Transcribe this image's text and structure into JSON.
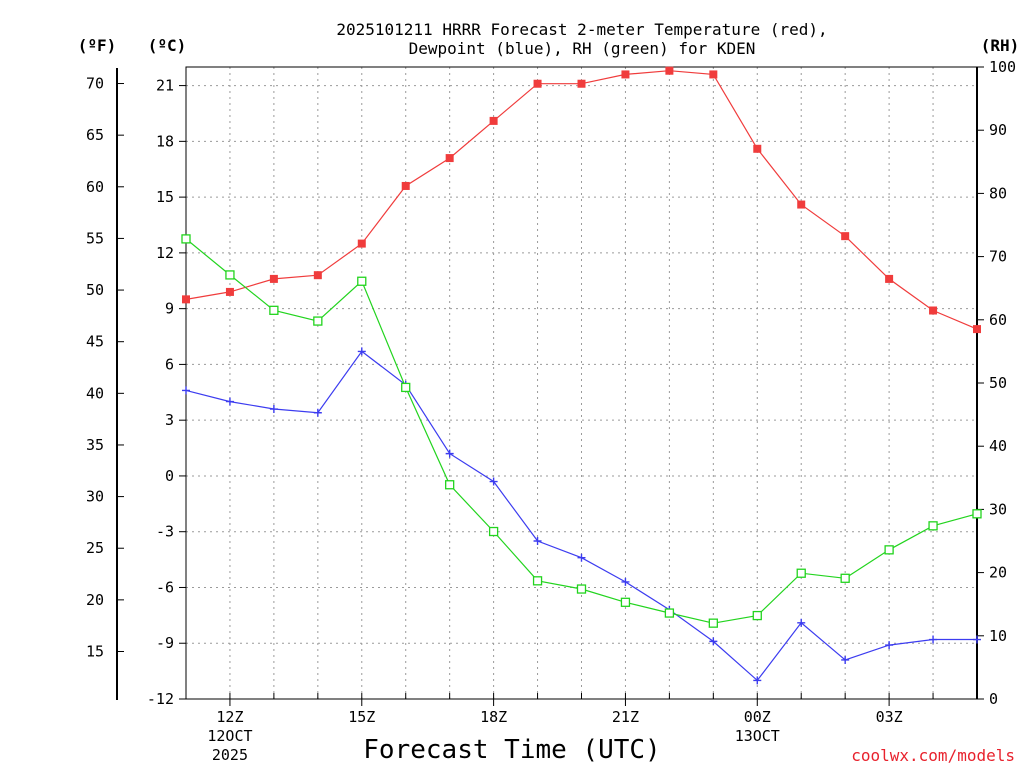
{
  "chart_data": {
    "type": "line",
    "title_line1": "2025101211 HRRR Forecast 2-meter Temperature (red),",
    "title_line2": "Dewpoint (blue), RH (green) for KDEN",
    "xlabel": "Forecast Time (UTC)",
    "credit": "coolwx.com/models",
    "units": {
      "fahrenheit": "(ºF)",
      "celsius": "(ºC)",
      "rh": "(RH)"
    },
    "x_hours": [
      11,
      12,
      13,
      14,
      15,
      16,
      17,
      18,
      19,
      20,
      21,
      22,
      23,
      24,
      25,
      26,
      27,
      28,
      29
    ],
    "xlim": [
      11,
      29
    ],
    "x_ticks": [
      {
        "hour": 12,
        "label": "12Z",
        "sub1": "12OCT",
        "sub2": "2025"
      },
      {
        "hour": 15,
        "label": "15Z",
        "sub1": "",
        "sub2": ""
      },
      {
        "hour": 18,
        "label": "18Z",
        "sub1": "",
        "sub2": ""
      },
      {
        "hour": 21,
        "label": "21Z",
        "sub1": "",
        "sub2": ""
      },
      {
        "hour": 24,
        "label": "00Z",
        "sub1": "13OCT",
        "sub2": ""
      },
      {
        "hour": 27,
        "label": "03Z",
        "sub1": "",
        "sub2": ""
      }
    ],
    "celsius_axis": {
      "ylim": [
        -12,
        22
      ],
      "ticks": [
        "-12",
        "-9",
        "-6",
        "-3",
        "0",
        "3",
        "6",
        "9",
        "12",
        "15",
        "18",
        "21"
      ]
    },
    "fahrenheit_axis": {
      "ticks": [
        "15",
        "20",
        "25",
        "30",
        "35",
        "40",
        "45",
        "50",
        "55",
        "60",
        "65",
        "70"
      ]
    },
    "rh_axis": {
      "ylim": [
        0,
        100
      ],
      "ticks": [
        "0",
        "10",
        "20",
        "30",
        "40",
        "50",
        "60",
        "70",
        "80",
        "90",
        "100"
      ]
    },
    "series": [
      {
        "name": "Temperature",
        "axis": "celsius",
        "color": "#f03c3c",
        "marker": "filled-square",
        "values": [
          9.5,
          9.9,
          10.6,
          10.8,
          12.5,
          15.6,
          17.1,
          19.1,
          21.1,
          21.1,
          21.6,
          21.8,
          21.6,
          17.6,
          14.6,
          12.9,
          10.6,
          8.9,
          7.9
        ]
      },
      {
        "name": "Dewpoint",
        "axis": "celsius",
        "color": "#3c3cf0",
        "marker": "plus",
        "values": [
          4.6,
          4.0,
          3.6,
          3.4,
          6.7,
          4.9,
          1.2,
          -0.3,
          -3.5,
          -4.4,
          -5.7,
          -7.2,
          -8.9,
          -11.0,
          -7.9,
          -9.9,
          -9.1,
          -8.8,
          -8.8
        ]
      },
      {
        "name": "RH",
        "axis": "rh",
        "color": "#22d41e",
        "marker": "open-square",
        "values": [
          72.8,
          67.1,
          61.5,
          59.8,
          66.1,
          49.3,
          33.9,
          26.5,
          18.7,
          17.4,
          15.3,
          13.6,
          12.0,
          13.2,
          19.9,
          19.1,
          23.6,
          27.4,
          29.3
        ]
      }
    ]
  }
}
